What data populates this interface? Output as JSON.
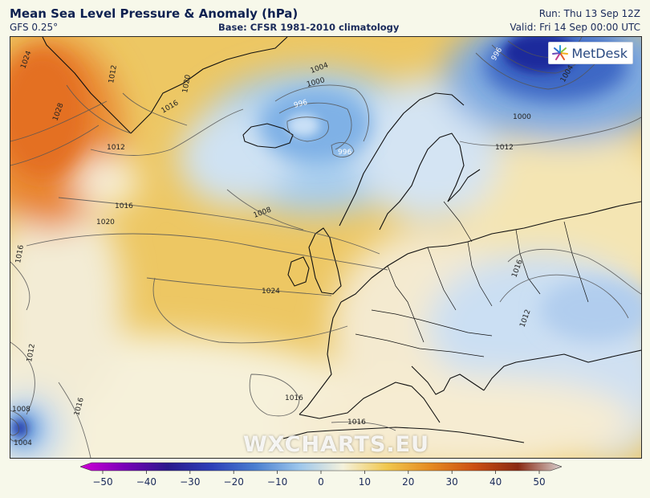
{
  "header": {
    "title": "Mean Sea Level Pressure & Anomaly (hPa)",
    "model": "GFS 0.25°",
    "base": "Base: CFSR 1981-2010 climatology",
    "run": "Run: Thu 13 Sep 12Z",
    "valid": "Valid: Fri 14 Sep 00:00 UTC"
  },
  "logo": {
    "text": "MetDesk"
  },
  "watermark": "WXCHARTS.EU",
  "colorbar": {
    "ticks": [
      "−50",
      "−40",
      "−30",
      "−20",
      "−10",
      "0",
      "10",
      "20",
      "30",
      "40",
      "50"
    ],
    "colors": [
      "#d100d6",
      "#7a00b8",
      "#2a1a8c",
      "#2c3fb8",
      "#4a7fd0",
      "#9cc6ec",
      "#f4f1dc",
      "#f1c84e",
      "#e58a20",
      "#cc4f12",
      "#8a2a12",
      "#d8d0d0"
    ]
  },
  "isobars": [
    {
      "label": "1024",
      "region": "greenland-sea"
    },
    {
      "label": "1028",
      "region": "greenland-sea"
    },
    {
      "label": "1020",
      "region": "greenland-south"
    },
    {
      "label": "1016",
      "region": "greenland-south"
    },
    {
      "label": "1012",
      "region": "greenland-south"
    },
    {
      "label": "1012",
      "region": "labrador-low"
    },
    {
      "label": "1016",
      "region": "mid-atlantic"
    },
    {
      "label": "1020",
      "region": "mid-atlantic"
    },
    {
      "label": "1024",
      "region": "azores-high"
    },
    {
      "label": "1008",
      "region": "iceland-south"
    },
    {
      "label": "1004",
      "region": "iceland-low"
    },
    {
      "label": "1000",
      "region": "iceland-low"
    },
    {
      "label": "996",
      "region": "iceland-low"
    },
    {
      "label": "996",
      "region": "iceland-low"
    },
    {
      "label": "996",
      "region": "barents-low"
    },
    {
      "label": "1000",
      "region": "barents-low"
    },
    {
      "label": "1004",
      "region": "barents-low"
    },
    {
      "label": "1012",
      "region": "russia"
    },
    {
      "label": "1016",
      "region": "black-sea"
    },
    {
      "label": "1012",
      "region": "black-sea"
    },
    {
      "label": "1016",
      "region": "mediterranean"
    },
    {
      "label": "1016",
      "region": "north-africa"
    },
    {
      "label": "1016",
      "region": "west-atlantic"
    },
    {
      "label": "1012",
      "region": "west-atlantic"
    },
    {
      "label": "1016",
      "region": "southwest"
    },
    {
      "label": "1008",
      "region": "sw-low"
    },
    {
      "label": "1004",
      "region": "sw-low"
    }
  ]
}
